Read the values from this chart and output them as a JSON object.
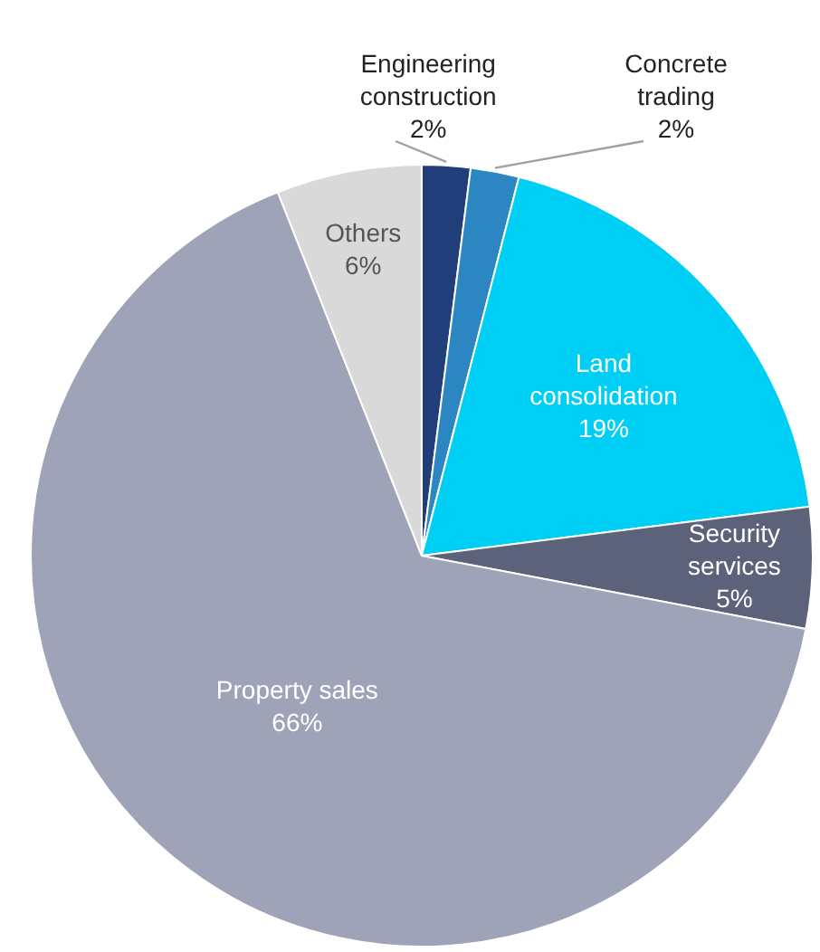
{
  "chart_data": {
    "type": "pie",
    "categories": [
      "Engineering construction",
      "Concrete trading",
      "Land consolidation",
      "Security services",
      "Property sales",
      "Others"
    ],
    "values": [
      2,
      2,
      19,
      5,
      66,
      6
    ],
    "colors": [
      "#203f7a",
      "#2b86c2",
      "#00cff5",
      "#5b6279",
      "#9ea3b8",
      "#d9d9d9"
    ],
    "value_labels": [
      "2%",
      "2%",
      "19%",
      "5%",
      "66%",
      "6%"
    ]
  }
}
